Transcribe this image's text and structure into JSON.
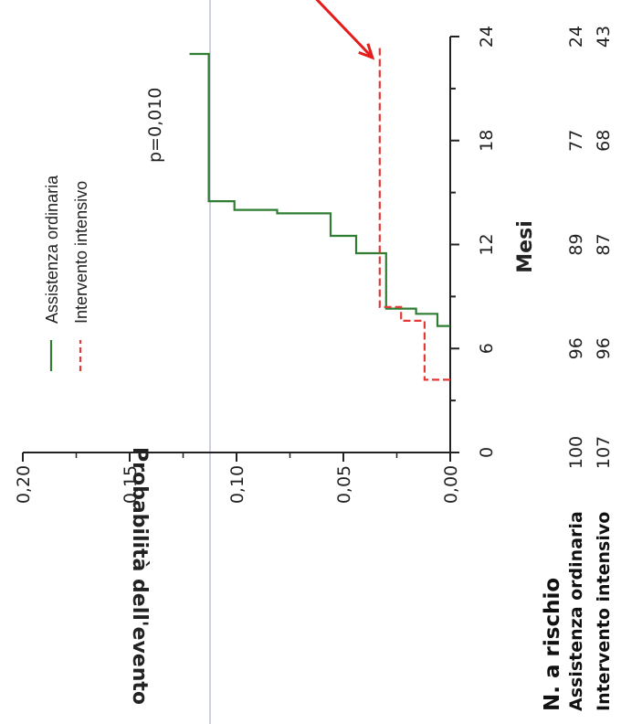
{
  "chart_data": {
    "type": "line",
    "orientation": "rotated-90-clockwise",
    "xlabel": "Mesi",
    "ylabel": "Probabilità dell'evento",
    "x_ticks": [
      0,
      6,
      12,
      18,
      24
    ],
    "x_tick_labels": [
      "0",
      "6",
      "12",
      "18",
      "24"
    ],
    "xlim": [
      0,
      24
    ],
    "y_ticks": [
      0.0,
      0.05,
      0.1,
      0.15,
      0.2
    ],
    "y_tick_labels": [
      "0,00",
      "0,05",
      "0,10",
      "0,15",
      "0,20"
    ],
    "ylim": [
      0,
      0.2
    ],
    "annotation": "p=0,010",
    "legend_position": "top",
    "series": [
      {
        "name": "Assistenza ordinaria",
        "color": "#2e7d32",
        "style": "solid",
        "points": [
          [
            7.3,
            0.0
          ],
          [
            7.3,
            0.006
          ],
          [
            8.0,
            0.006
          ],
          [
            8.0,
            0.016
          ],
          [
            8.3,
            0.016
          ],
          [
            8.3,
            0.03
          ],
          [
            11.5,
            0.03
          ],
          [
            11.5,
            0.044
          ],
          [
            12.5,
            0.044
          ],
          [
            12.5,
            0.056
          ],
          [
            13.8,
            0.056
          ],
          [
            13.8,
            0.081
          ],
          [
            14.0,
            0.081
          ],
          [
            14.0,
            0.101
          ],
          [
            14.5,
            0.101
          ],
          [
            14.5,
            0.113
          ],
          [
            23.0,
            0.113
          ],
          [
            23.0,
            0.122
          ]
        ]
      },
      {
        "name": "Intervento intensivo",
        "color": "#e53935",
        "style": "dashed",
        "points": [
          [
            4.2,
            0.0
          ],
          [
            4.2,
            0.012
          ],
          [
            7.6,
            0.012
          ],
          [
            7.6,
            0.023
          ],
          [
            8.4,
            0.023
          ],
          [
            8.4,
            0.033
          ],
          [
            23.5,
            0.033
          ]
        ]
      }
    ],
    "risk_table": {
      "title": "N. a rischio",
      "rows": [
        {
          "label": "Assistenza ordinaria",
          "values": [
            "100",
            "96",
            "89",
            "77",
            "24"
          ]
        },
        {
          "label": "Intervento intensivo",
          "values": [
            "107",
            "96",
            "87",
            "68",
            "43"
          ]
        }
      ]
    },
    "arrow_color": "#e51c1c",
    "arrow_target_x": 23.0,
    "arrow_target_y": 0.033
  }
}
